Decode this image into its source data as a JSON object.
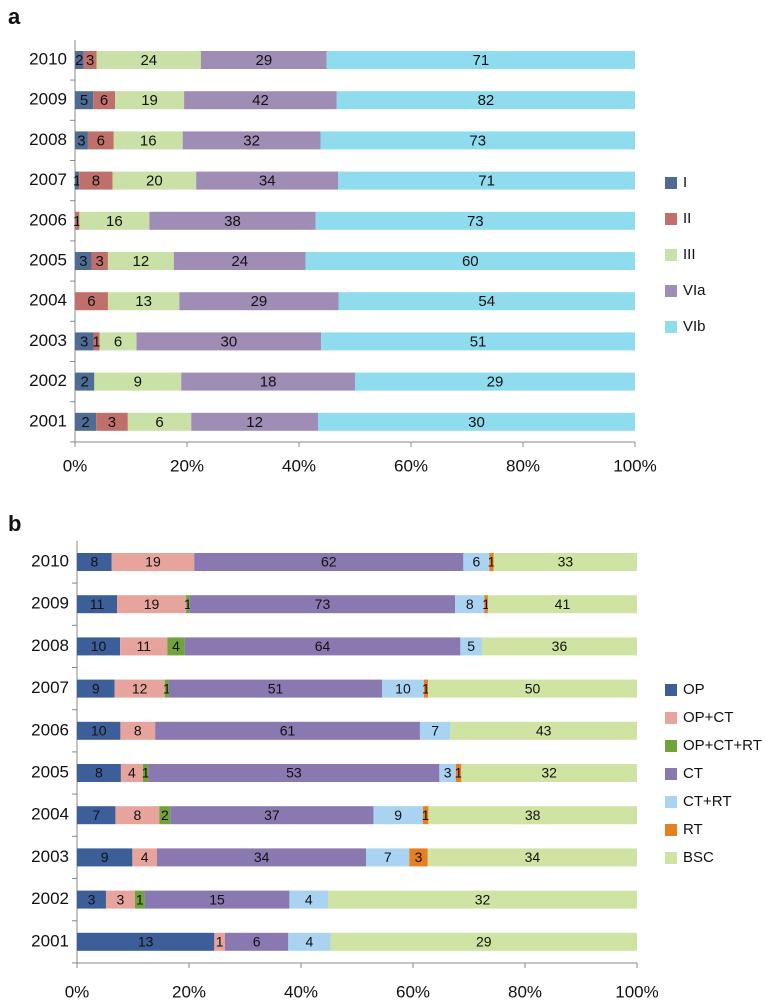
{
  "chart_data": [
    {
      "type": "bar",
      "stacking": "percent",
      "orientation": "horizontal",
      "label": "a",
      "categories": [
        "2010",
        "2009",
        "2008",
        "2007",
        "2006",
        "2005",
        "2004",
        "2003",
        "2002",
        "2001"
      ],
      "series": [
        {
          "name": "I",
          "color": "#4f6d94",
          "values": [
            2,
            5,
            3,
            1,
            null,
            3,
            null,
            3,
            2,
            2
          ]
        },
        {
          "name": "II",
          "color": "#c0706b",
          "values": [
            3,
            6,
            6,
            8,
            1,
            3,
            6,
            1,
            null,
            3
          ]
        },
        {
          "name": "III",
          "color": "#c9e0a6",
          "values": [
            24,
            19,
            16,
            20,
            16,
            12,
            13,
            6,
            9,
            6
          ]
        },
        {
          "name": "VIa",
          "color": "#a08db6",
          "values": [
            29,
            42,
            32,
            34,
            38,
            24,
            29,
            30,
            18,
            12
          ]
        },
        {
          "name": "VIb",
          "color": "#8fdcef",
          "values": [
            71,
            82,
            73,
            71,
            73,
            60,
            54,
            51,
            29,
            30
          ]
        }
      ],
      "xlim": [
        0,
        100
      ],
      "xticks": [
        {
          "value": 0,
          "label": "0%"
        },
        {
          "value": 20,
          "label": "20%"
        },
        {
          "value": 40,
          "label": "40%"
        },
        {
          "value": 60,
          "label": "60%"
        },
        {
          "value": 80,
          "label": "80%"
        },
        {
          "value": 100,
          "label": "100%"
        }
      ],
      "legend": "right"
    },
    {
      "type": "bar",
      "stacking": "percent",
      "orientation": "horizontal",
      "label": "b",
      "categories": [
        "2010",
        "2009",
        "2008",
        "2007",
        "2006",
        "2005",
        "2004",
        "2003",
        "2002",
        "2001"
      ],
      "series": [
        {
          "name": "OP",
          "color": "#3d5f99",
          "values": [
            8,
            11,
            10,
            9,
            10,
            8,
            7,
            9,
            3,
            13
          ]
        },
        {
          "name": "OP+CT",
          "color": "#e6a49d",
          "values": [
            19,
            19,
            11,
            12,
            8,
            4,
            8,
            4,
            3,
            1
          ]
        },
        {
          "name": "OP+CT+RT",
          "color": "#70a33c",
          "values": [
            null,
            1,
            4,
            1,
            null,
            1,
            2,
            null,
            1,
            null
          ]
        },
        {
          "name": "CT",
          "color": "#8a78b0",
          "values": [
            62,
            73,
            64,
            51,
            61,
            53,
            37,
            34,
            15,
            6
          ]
        },
        {
          "name": "CT+RT",
          "color": "#a9d3f0",
          "values": [
            6,
            8,
            5,
            10,
            7,
            3,
            9,
            7,
            4,
            4
          ]
        },
        {
          "name": "RT",
          "color": "#e67e22",
          "values": [
            1,
            1,
            null,
            1,
            null,
            1,
            1,
            3,
            null,
            null
          ]
        },
        {
          "name": "BSC",
          "color": "#cfe3a3",
          "values": [
            33,
            41,
            36,
            50,
            43,
            32,
            38,
            34,
            32,
            29
          ]
        }
      ],
      "xlim": [
        0,
        100
      ],
      "xticks": [
        {
          "value": 0,
          "label": "0%"
        },
        {
          "value": 20,
          "label": "20%"
        },
        {
          "value": 40,
          "label": "40%"
        },
        {
          "value": 60,
          "label": "60%"
        },
        {
          "value": 80,
          "label": "80%"
        },
        {
          "value": 100,
          "label": "100%"
        }
      ],
      "legend": "right"
    }
  ]
}
